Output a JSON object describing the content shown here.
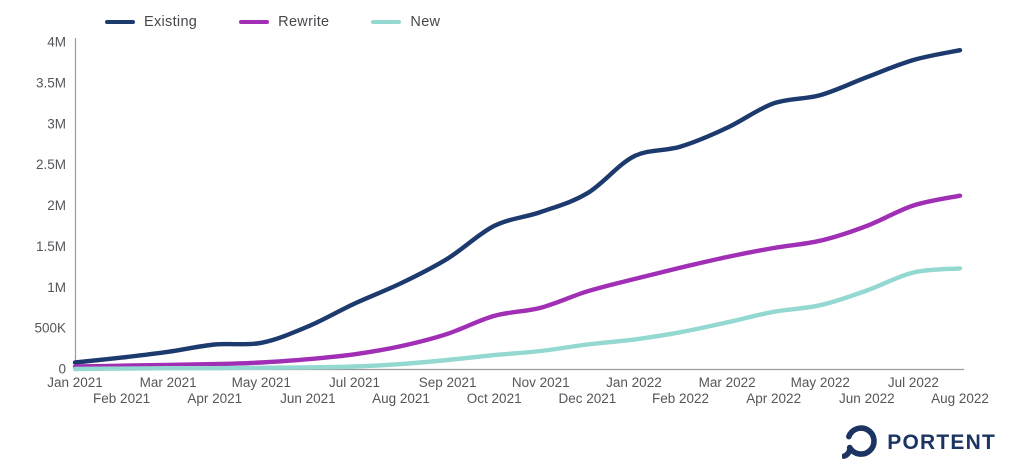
{
  "chart_data": {
    "type": "line",
    "title": "",
    "xlabel": "",
    "ylabel": "",
    "grid": false,
    "legend_position": "top-left",
    "ylim": [
      0,
      4000000
    ],
    "x": [
      "Jan 2021",
      "Feb 2021",
      "Mar 2021",
      "Apr 2021",
      "May 2021",
      "Jun 2021",
      "Jul 2021",
      "Aug 2021",
      "Sep 2021",
      "Oct 2021",
      "Nov 2021",
      "Dec 2021",
      "Jan 2022",
      "Feb 2022",
      "Mar 2022",
      "Apr 2022",
      "May 2022",
      "Jun 2022",
      "Jul 2022",
      "Aug 2022"
    ],
    "y_ticks": [
      {
        "value": 0,
        "label": "0"
      },
      {
        "value": 500000,
        "label": "500K"
      },
      {
        "value": 1000000,
        "label": "1M"
      },
      {
        "value": 1500000,
        "label": "1.5M"
      },
      {
        "value": 2000000,
        "label": "2M"
      },
      {
        "value": 2500000,
        "label": "2.5M"
      },
      {
        "value": 3000000,
        "label": "3M"
      },
      {
        "value": 3500000,
        "label": "3.5M"
      },
      {
        "value": 4000000,
        "label": "4M"
      }
    ],
    "series": [
      {
        "name": "Existing",
        "color": "#1c3a6e",
        "values": [
          80000,
          140000,
          210000,
          300000,
          320000,
          520000,
          800000,
          1050000,
          1350000,
          1750000,
          1920000,
          2150000,
          2600000,
          2720000,
          2950000,
          3250000,
          3350000,
          3570000,
          3780000,
          3900000
        ]
      },
      {
        "name": "Rewrite",
        "color": "#a02fb5",
        "values": [
          30000,
          40000,
          50000,
          60000,
          80000,
          120000,
          180000,
          280000,
          430000,
          650000,
          750000,
          950000,
          1100000,
          1240000,
          1370000,
          1480000,
          1570000,
          1750000,
          2000000,
          2120000
        ]
      },
      {
        "name": "New",
        "color": "#93d8d1",
        "values": [
          0,
          5000,
          10000,
          10000,
          15000,
          20000,
          30000,
          60000,
          110000,
          170000,
          220000,
          300000,
          360000,
          450000,
          570000,
          700000,
          780000,
          960000,
          1180000,
          1230000
        ]
      }
    ],
    "colors": {
      "axis": "#9b9b9b",
      "tick_text": "#54565a"
    }
  },
  "branding": {
    "logo_text": "PORTENT",
    "logo_color": "#1c3461"
  }
}
